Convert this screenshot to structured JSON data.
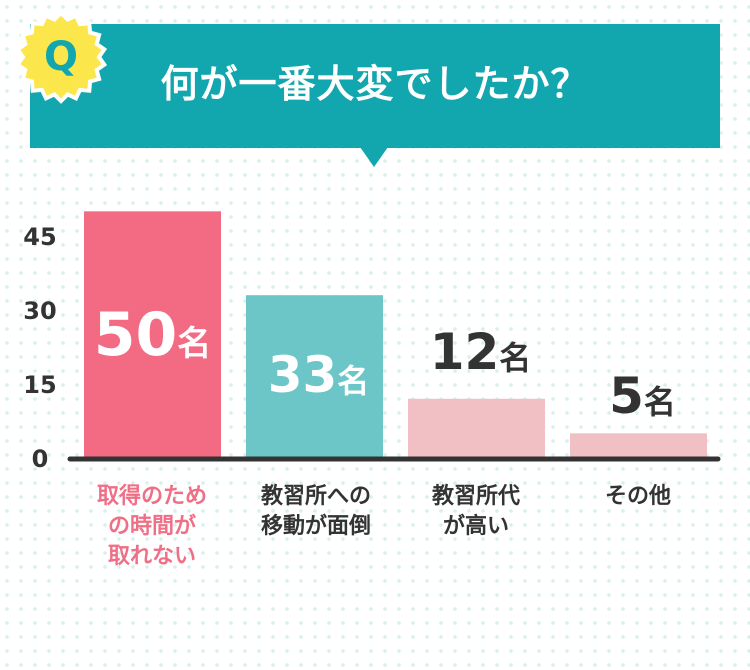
{
  "header": {
    "badge_letter": "Q",
    "question": "何が一番大変でしたか？"
  },
  "colors": {
    "header_bg": "#12a6ae",
    "badge_bg": "#fbe64b",
    "bar_highlight": "#f26b83",
    "bar_second": "#6cc5c6",
    "bar_other": "#f0c0c4",
    "axis": "#333333"
  },
  "chart_data": {
    "type": "bar",
    "categories": [
      "取得のため\nの時間が\n取れない",
      "教習所への\n移動が面倒",
      "教習所代\nが高い",
      "その他"
    ],
    "values": [
      50,
      33,
      12,
      5
    ],
    "value_labels": [
      "50名",
      "33名",
      "12名",
      "5名"
    ],
    "yticks": [
      0,
      15,
      30,
      45
    ],
    "ylim": [
      0,
      50
    ],
    "grid": false,
    "title": "何が一番大変でしたか？"
  }
}
